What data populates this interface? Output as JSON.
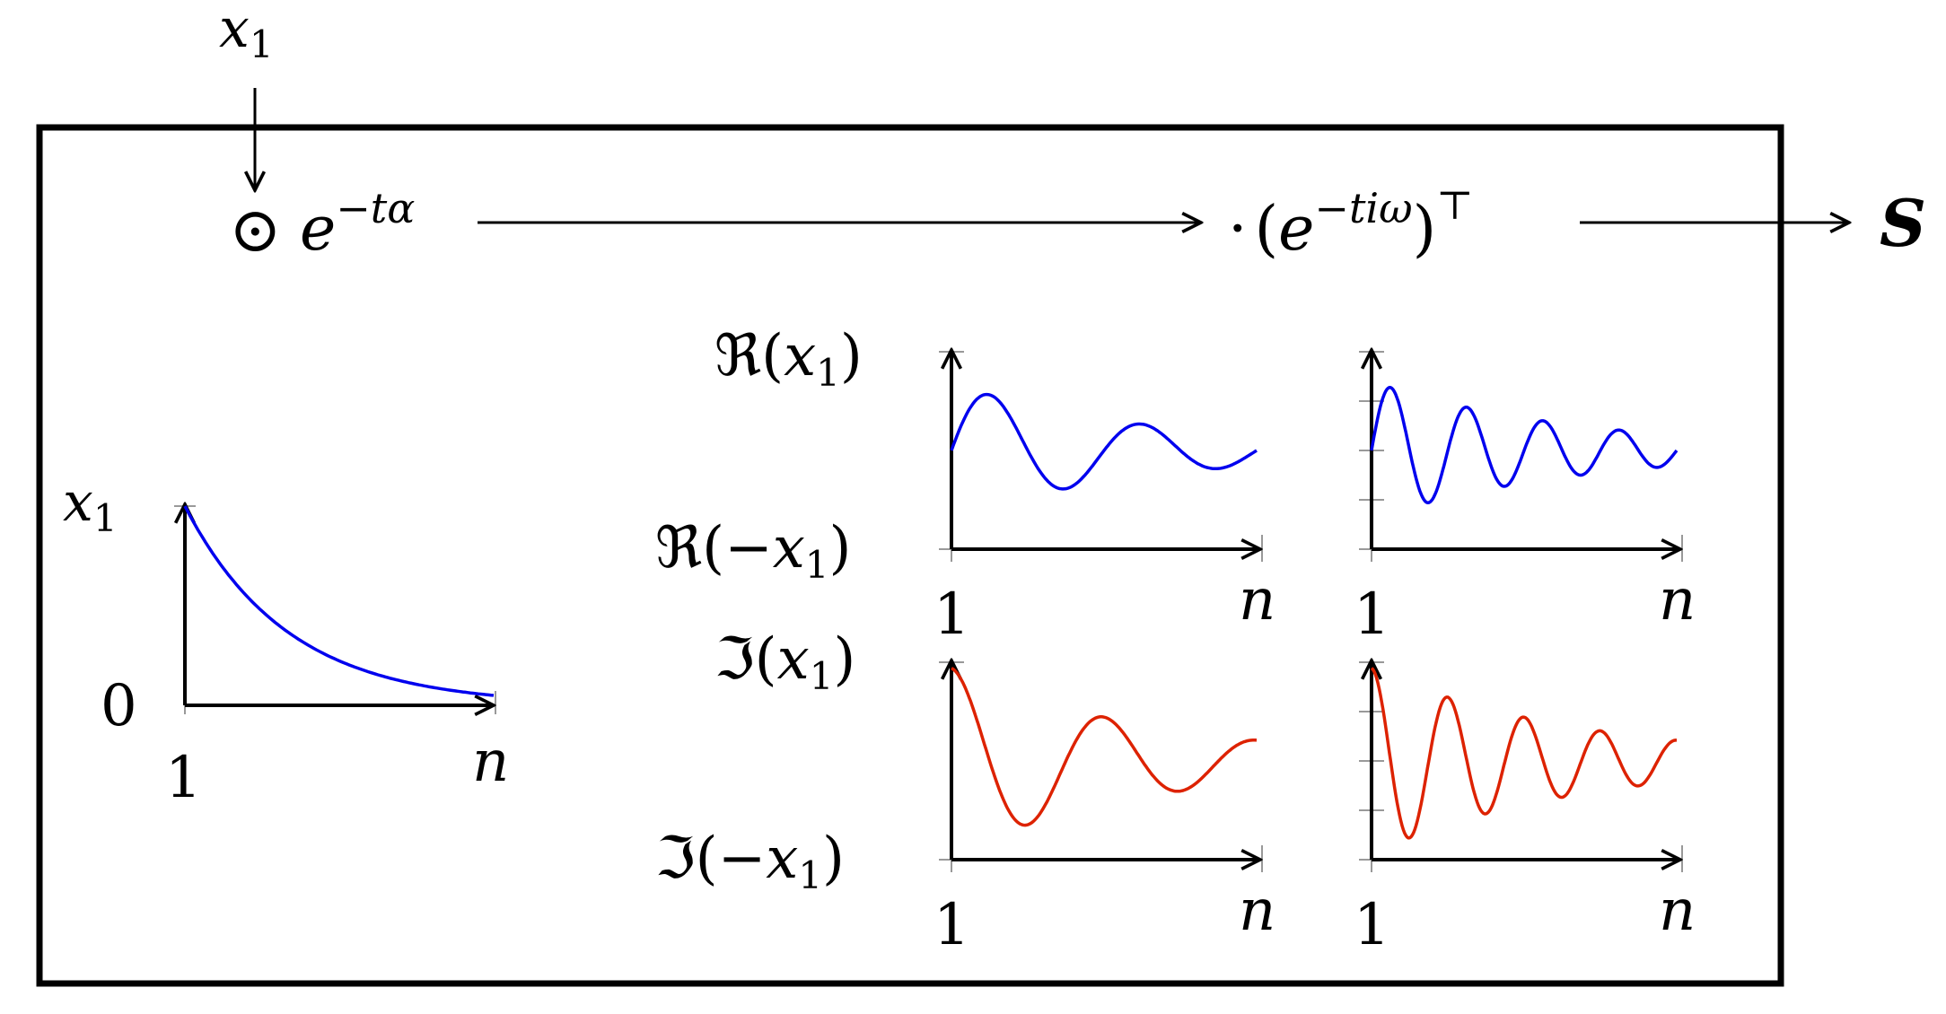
{
  "input": {
    "var": "x",
    "sub": "1"
  },
  "operators": {
    "odot": "⊙",
    "decay_base": "e",
    "decay_exp": "−tα",
    "dot": "·",
    "lparen": "(",
    "freq_base": "e",
    "freq_exp": "−tiω",
    "rparen": ")",
    "transpose": "⊤"
  },
  "output": {
    "label": "S"
  },
  "colors": {
    "real": "#0000ee",
    "imag": "#dd2200",
    "decay": "#0000ee",
    "frame": "#000000"
  },
  "decay_plot": {
    "ylabel_top": {
      "var": "x",
      "sub": "1"
    },
    "ylabel_bottom": "0",
    "xlabel_start": "1",
    "xlabel_end": "n"
  },
  "osc_labels": {
    "real_top": {
      "prefix": "ℜ(",
      "var": "x",
      "sub": "1",
      "suffix": ")"
    },
    "real_bottom": {
      "prefix": "ℜ(−",
      "var": "x",
      "sub": "1",
      "suffix": ")"
    },
    "imag_top": {
      "prefix": "ℑ(",
      "var": "x",
      "sub": "1",
      "suffix": ")"
    },
    "imag_bottom": {
      "prefix": "ℑ(−",
      "var": "x",
      "sub": "1",
      "suffix": ")"
    },
    "x_start": "1",
    "x_end": "n"
  },
  "chart_data": [
    {
      "type": "line",
      "name": "decay",
      "curve": "exponential_decay",
      "x_range": [
        "1",
        "n"
      ],
      "y_range": [
        0,
        1
      ],
      "decay_rate": 3.0
    },
    {
      "type": "line",
      "name": "real_slow",
      "curve": "damped_cosine",
      "x_range": [
        "1",
        "n"
      ],
      "y_range": [
        -1,
        1
      ],
      "omega_cycles": 2.0,
      "damping": 1.5,
      "phase": "sin+cos"
    },
    {
      "type": "line",
      "name": "real_fast",
      "curve": "damped_cosine",
      "x_range": [
        "1",
        "n"
      ],
      "y_range": [
        -1,
        1
      ],
      "omega_cycles": 4.0,
      "damping": 1.5,
      "phase": "sin+cos"
    },
    {
      "type": "line",
      "name": "imag_slow",
      "curve": "damped_cosine",
      "x_range": [
        "1",
        "n"
      ],
      "y_range": [
        -1,
        1
      ],
      "omega_cycles": 2.0,
      "damping": 1.5,
      "phase": "cos"
    },
    {
      "type": "line",
      "name": "imag_fast",
      "curve": "damped_cosine",
      "x_range": [
        "1",
        "n"
      ],
      "y_range": [
        -1,
        1
      ],
      "omega_cycles": 4.0,
      "damping": 1.5,
      "phase": "cos"
    }
  ]
}
